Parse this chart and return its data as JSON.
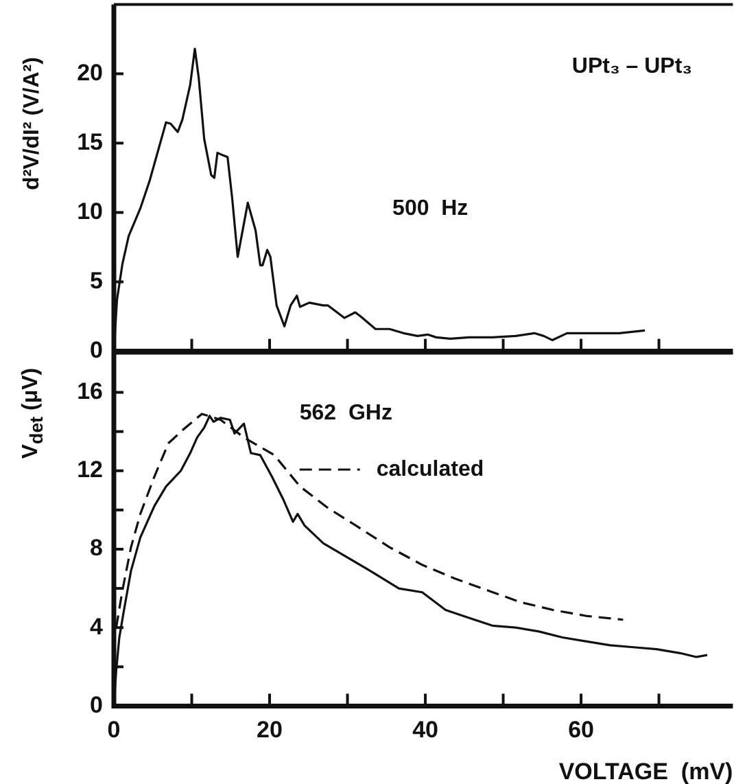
{
  "chart_data": [
    {
      "type": "line",
      "ylabel": "d²V/dI²  (V/A²)",
      "annotations": [
        "UPt₃ – UPt₃",
        "500  Hz"
      ],
      "xlim": [
        0,
        79.5
      ],
      "xticks": [
        0,
        {
          "value": 10,
          "label": null
        },
        20,
        {
          "value": 30,
          "label": null
        },
        40,
        {
          "value": 50,
          "label": null
        },
        60,
        {
          "value": 70,
          "label": null
        }
      ],
      "ylim": [
        0,
        25
      ],
      "yticks": [
        0,
        5,
        10,
        15,
        20
      ],
      "tick_labels": "y",
      "marker": "none",
      "line_style": "solid",
      "series": [
        {
          "color": "#111111",
          "x": [
            0,
            0.4,
            1.1,
            1.9,
            3.4,
            4.6,
            5.8,
            6.7,
            7.3,
            8.2,
            8.8,
            9.8,
            10.4,
            10.9,
            11.6,
            12.5,
            12.9,
            13.3,
            13.7,
            14.6,
            15.2,
            15.9,
            17.2,
            18.2,
            18.8,
            19.1,
            19.7,
            20.1,
            20.9,
            21.9,
            22.7,
            23.5,
            23.9,
            25.1,
            26.9,
            27.5,
            29.6,
            31.0,
            31.7,
            33.6,
            35.4,
            37.2,
            39.0,
            40.3,
            41.4,
            43.2,
            45.6,
            48.6,
            51.6,
            54.0,
            55.2,
            56.3,
            58.2,
            61.2,
            64.9,
            68.2
          ],
          "values": [
            0,
            3.7,
            6.3,
            8.3,
            10.3,
            12.3,
            14.7,
            16.5,
            16.4,
            15.8,
            16.7,
            19.2,
            21.8,
            19.7,
            15.3,
            12.7,
            12.5,
            14.3,
            14.2,
            14.0,
            11.0,
            6.8,
            10.7,
            8.7,
            6.2,
            6.2,
            7.3,
            6.8,
            3.3,
            1.8,
            3.3,
            4.0,
            3.2,
            3.5,
            3.3,
            3.3,
            2.4,
            2.8,
            2.5,
            1.6,
            1.6,
            1.3,
            1.1,
            1.2,
            1.0,
            0.9,
            1.0,
            1.0,
            1.1,
            1.3,
            1.1,
            0.8,
            1.3,
            1.3,
            1.3,
            1.5
          ]
        }
      ]
    },
    {
      "type": "line",
      "xlabel": "VOLTAGE  (mV)",
      "ylabel": "V$_{det}$  (μV)",
      "annotations": [
        "562  GHz"
      ],
      "legend": "top",
      "xlim": [
        0,
        79.5
      ],
      "xticks": [
        0,
        {
          "value": 10,
          "label": null
        },
        20,
        {
          "value": 30,
          "label": null
        },
        40,
        {
          "value": 50,
          "label": null
        },
        60,
        {
          "value": 70,
          "label": null
        }
      ],
      "ylim": [
        0,
        18
      ],
      "yticks": [
        0,
        {
          "value": 2,
          "label": null
        },
        4,
        {
          "value": 6,
          "label": null
        },
        8,
        {
          "value": 10,
          "label": null
        },
        12,
        {
          "value": 14,
          "label": null
        },
        16
      ],
      "marker": "none",
      "series": [
        {
          "color": "#111111",
          "line_style": "solid",
          "x": [
            0,
            0.3,
            0.7,
            1.3,
            2.2,
            3.4,
            5.2,
            6.7,
            8.6,
            9.8,
            10.7,
            11.6,
            12.3,
            12.8,
            13.7,
            14.9,
            15.5,
            16.7,
            17.6,
            18.8,
            20.3,
            21.8,
            23.0,
            23.6,
            24.5,
            26.9,
            29.9,
            32.9,
            36.6,
            39.6,
            42.6,
            45.6,
            48.6,
            51.6,
            54.6,
            57.6,
            60.6,
            63.7,
            66.7,
            69.7,
            72.7,
            74.8,
            76.2
          ],
          "values": [
            0,
            1.8,
            3.5,
            4.9,
            6.9,
            8.6,
            10.2,
            11.2,
            12.0,
            12.9,
            13.7,
            14.2,
            14.8,
            14.5,
            14.7,
            14.6,
            13.9,
            14.4,
            12.9,
            12.8,
            11.7,
            10.5,
            9.4,
            9.8,
            9.2,
            8.3,
            7.6,
            6.9,
            6.0,
            5.8,
            4.9,
            4.5,
            4.1,
            4.0,
            3.8,
            3.5,
            3.3,
            3.1,
            3.0,
            2.9,
            2.7,
            2.5,
            2.6
          ]
        },
        {
          "name": "calculated",
          "color": "#111111",
          "line_style": "dashed",
          "x": [
            0.3,
            1.1,
            2.2,
            3.4,
            5.2,
            7.0,
            8.9,
            11.3,
            13.7,
            16.7,
            20.6,
            23.9,
            27.5,
            31.1,
            35.4,
            39.6,
            43.8,
            48.0,
            52.2,
            56.4,
            60.6,
            65.4
          ],
          "values": [
            4.0,
            5.9,
            8.1,
            9.8,
            11.7,
            13.4,
            14.1,
            14.9,
            14.6,
            13.7,
            12.8,
            11.2,
            10.1,
            9.2,
            8.1,
            7.2,
            6.5,
            5.9,
            5.3,
            4.9,
            4.6,
            4.4
          ]
        }
      ]
    }
  ]
}
